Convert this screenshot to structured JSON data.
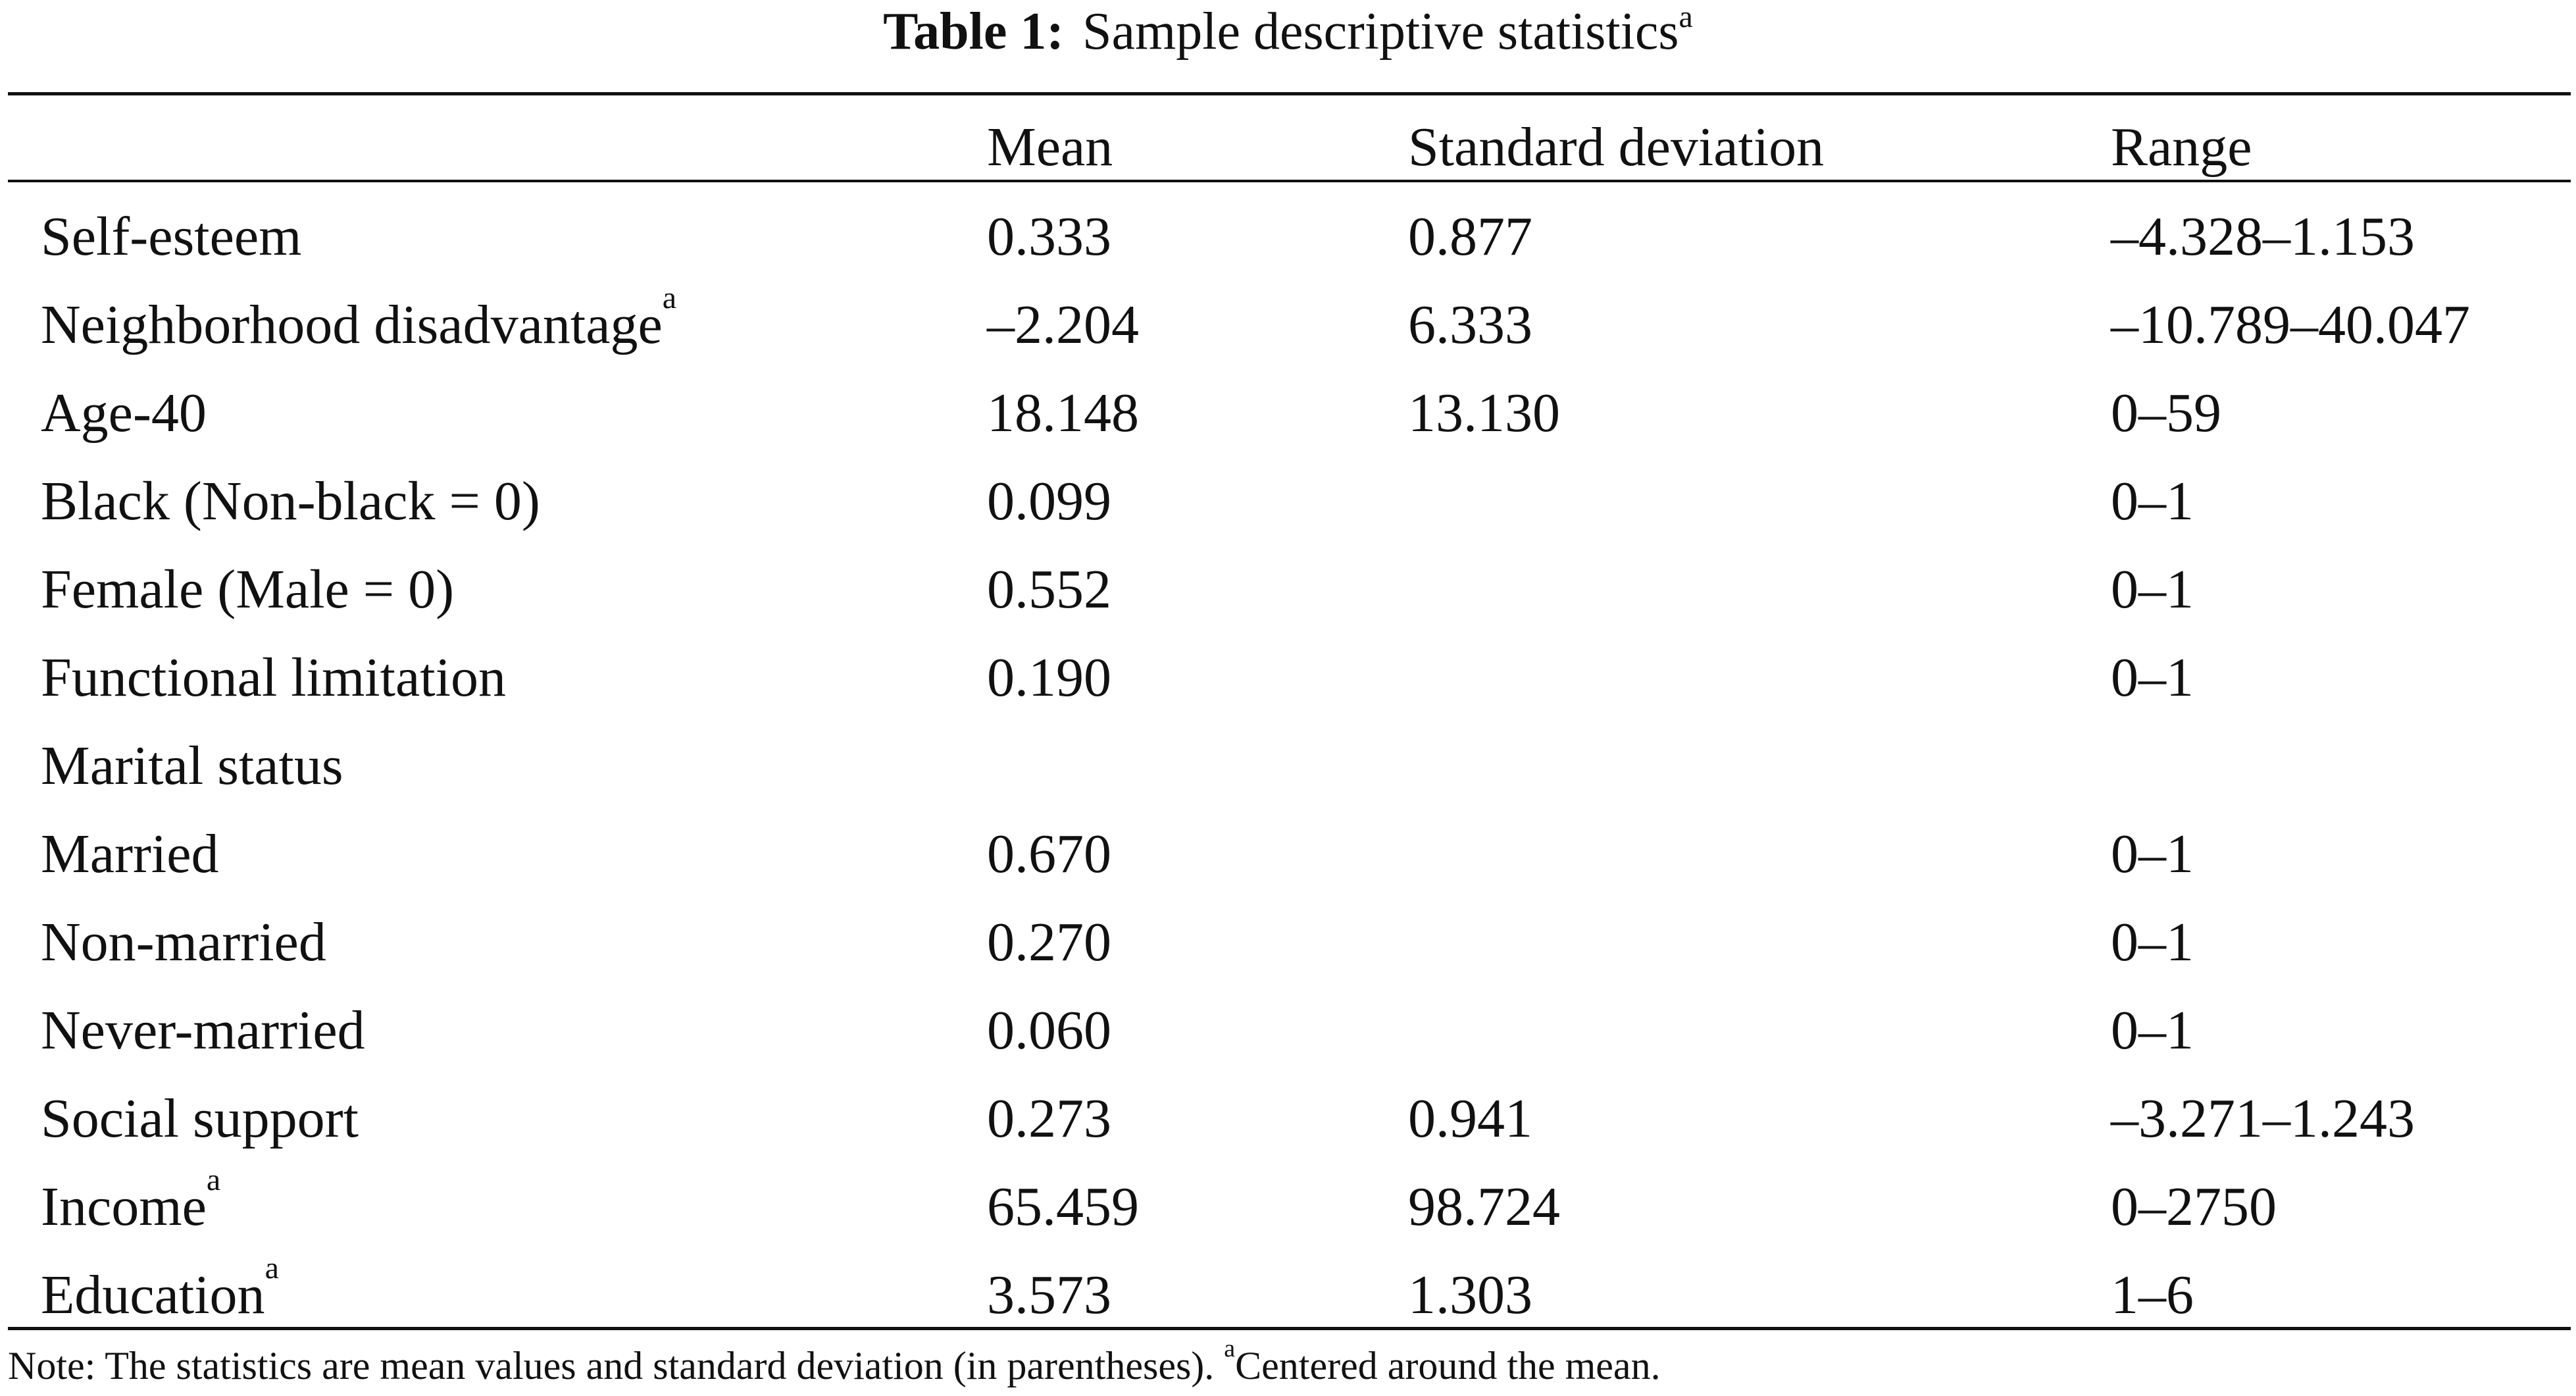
{
  "caption": {
    "label": "Table 1:",
    "title": "Sample descriptive statistics",
    "title_sup": "a"
  },
  "columns": {
    "label": "",
    "mean": "Mean",
    "sd": "Standard deviation",
    "range": "Range"
  },
  "rows": [
    {
      "label": "Self-esteem",
      "sup": "",
      "mean": "0.333",
      "sd": "0.877",
      "range": "–4.328–1.153"
    },
    {
      "label": "Neighborhood disadvantage",
      "sup": "a",
      "mean": "–2.204",
      "sd": "6.333",
      "range": "–10.789–40.047"
    },
    {
      "label": "Age-40",
      "sup": "",
      "mean": "18.148",
      "sd": "13.130",
      "range": "0–59"
    },
    {
      "label": "Black (Non-black = 0)",
      "sup": "",
      "mean": "0.099",
      "sd": "",
      "range": "0–1"
    },
    {
      "label": "Female (Male = 0)",
      "sup": "",
      "mean": "0.552",
      "sd": "",
      "range": "0–1"
    },
    {
      "label": "Functional limitation",
      "sup": "",
      "mean": "0.190",
      "sd": "",
      "range": "0–1"
    },
    {
      "label": "Marital status",
      "sup": "",
      "mean": "",
      "sd": "",
      "range": ""
    },
    {
      "label": "Married",
      "sup": "",
      "mean": "0.670",
      "sd": "",
      "range": "0–1"
    },
    {
      "label": "Non-married",
      "sup": "",
      "mean": "0.270",
      "sd": "",
      "range": "0–1"
    },
    {
      "label": "Never-married",
      "sup": "",
      "mean": "0.060",
      "sd": "",
      "range": "0–1"
    },
    {
      "label": "Social support",
      "sup": "",
      "mean": "0.273",
      "sd": "0.941",
      "range": "–3.271–1.243"
    },
    {
      "label": "Income",
      "sup": "a",
      "mean": "65.459",
      "sd": "98.724",
      "range": "0–2750"
    },
    {
      "label": "Education",
      "sup": "a",
      "mean": "3.573",
      "sd": "1.303",
      "range": "1–6"
    }
  ],
  "note": {
    "text": "Note: The statistics are mean values and standard deviation (in parentheses). ",
    "sup": "a",
    "tail": "Centered around the mean."
  }
}
